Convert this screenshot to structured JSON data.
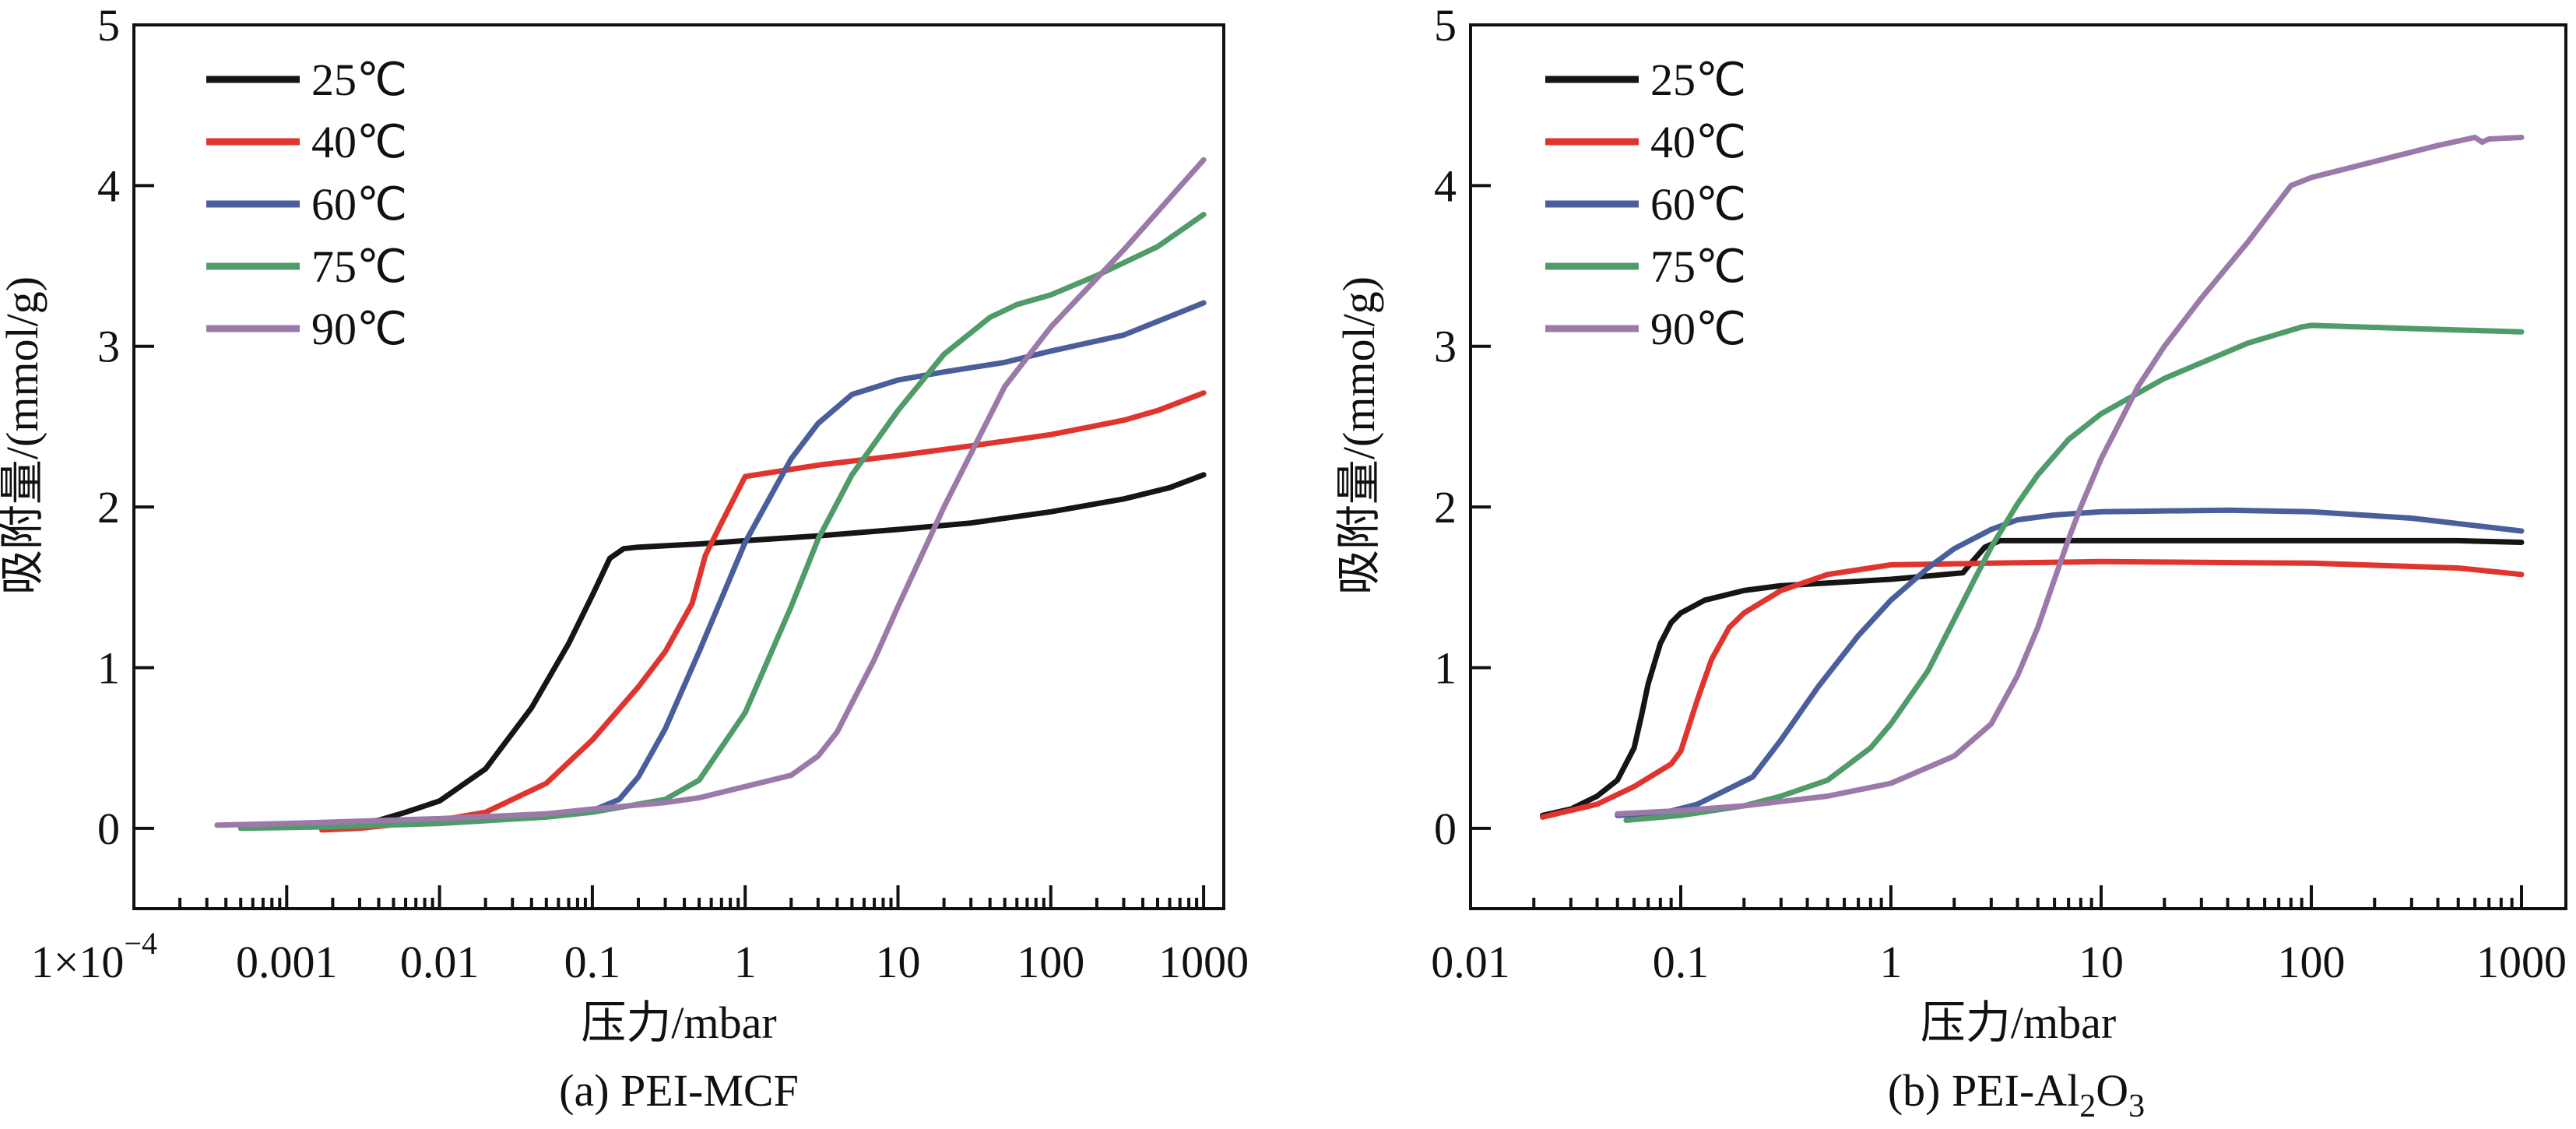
{
  "chart_data": [
    {
      "type": "line",
      "panel": "a",
      "caption": "(a) PEI-MCF",
      "xlabel": "压力/mbar",
      "ylabel": "吸附量/(mmol/g)",
      "xscale": "log",
      "xlim": [
        0.0001,
        1380
      ],
      "ylim": [
        -0.5,
        5
      ],
      "xticks": [
        {
          "value": 0.0001,
          "label": "1×10",
          "sup": "−4"
        },
        {
          "value": 0.001,
          "label": "0.001"
        },
        {
          "value": 0.01,
          "label": "0.01"
        },
        {
          "value": 0.1,
          "label": "0.1"
        },
        {
          "value": 1,
          "label": "1"
        },
        {
          "value": 10,
          "label": "10"
        },
        {
          "value": 100,
          "label": "100"
        },
        {
          "value": 1000,
          "label": "1000"
        }
      ],
      "yticks": [
        0,
        1,
        2,
        3,
        4,
        5
      ],
      "legend": "top-left",
      "grid": false,
      "series": [
        {
          "name": "25℃",
          "color": "#151515",
          "x": [
            0.0015,
            0.0025,
            0.004,
            0.006,
            0.01,
            0.02,
            0.04,
            0.07,
            0.1,
            0.13,
            0.16,
            0.2,
            0.5,
            1,
            3,
            10,
            30,
            100,
            300,
            600,
            1000
          ],
          "y": [
            0.03,
            0.03,
            0.05,
            0.1,
            0.17,
            0.37,
            0.75,
            1.15,
            1.45,
            1.68,
            1.74,
            1.75,
            1.77,
            1.79,
            1.82,
            1.86,
            1.9,
            1.97,
            2.05,
            2.12,
            2.2
          ]
        },
        {
          "name": "40℃",
          "color": "#e0352f",
          "x": [
            0.0017,
            0.003,
            0.006,
            0.01,
            0.02,
            0.05,
            0.1,
            0.2,
            0.3,
            0.45,
            0.55,
            0.7,
            1.0,
            3,
            10,
            30,
            100,
            300,
            500,
            1000
          ],
          "y": [
            -0.01,
            0.0,
            0.03,
            0.05,
            0.1,
            0.28,
            0.55,
            0.88,
            1.1,
            1.4,
            1.7,
            1.9,
            2.19,
            2.26,
            2.32,
            2.38,
            2.45,
            2.54,
            2.6,
            2.71
          ]
        },
        {
          "name": "60℃",
          "color": "#4a5e9c",
          "x": [
            0.0005,
            0.002,
            0.01,
            0.05,
            0.1,
            0.15,
            0.2,
            0.3,
            0.5,
            1,
            2,
            3,
            5,
            10,
            20,
            50,
            100,
            300,
            1000
          ],
          "y": [
            0.02,
            0.03,
            0.05,
            0.08,
            0.11,
            0.18,
            0.32,
            0.62,
            1.1,
            1.78,
            2.3,
            2.52,
            2.7,
            2.79,
            2.84,
            2.9,
            2.97,
            3.07,
            3.27
          ]
        },
        {
          "name": "75℃",
          "color": "#4f9b69",
          "x": [
            0.0005,
            0.002,
            0.01,
            0.05,
            0.1,
            0.3,
            0.5,
            1,
            2,
            3,
            5,
            10,
            20,
            40,
            60,
            100,
            200,
            500,
            1000
          ],
          "y": [
            0.0,
            0.01,
            0.03,
            0.07,
            0.1,
            0.18,
            0.3,
            0.72,
            1.38,
            1.8,
            2.2,
            2.6,
            2.95,
            3.18,
            3.26,
            3.32,
            3.44,
            3.62,
            3.82
          ]
        },
        {
          "name": "90℃",
          "color": "#9b79a9",
          "x": [
            0.00035,
            0.001,
            0.01,
            0.05,
            0.1,
            0.3,
            0.5,
            1,
            2,
            3,
            4,
            5,
            7,
            10,
            20,
            50,
            100,
            300,
            1000
          ],
          "y": [
            0.02,
            0.03,
            0.06,
            0.09,
            0.12,
            0.16,
            0.19,
            0.26,
            0.33,
            0.45,
            0.6,
            0.78,
            1.05,
            1.38,
            2.0,
            2.75,
            3.12,
            3.6,
            4.16
          ]
        }
      ]
    },
    {
      "type": "line",
      "panel": "b",
      "caption_parts": [
        "(b) PEI-Al",
        "2",
        "O",
        "3"
      ],
      "caption": "(b) PEI-Al2O3",
      "xlabel": "压力/mbar",
      "ylabel": "吸附量/(mmol/g)",
      "xscale": "log",
      "xlim": [
        0.01,
        1630
      ],
      "ylim": [
        -0.5,
        5
      ],
      "xticks": [
        {
          "value": 0.01,
          "label": "0.01"
        },
        {
          "value": 0.1,
          "label": "0.1"
        },
        {
          "value": 1,
          "label": "1"
        },
        {
          "value": 10,
          "label": "10"
        },
        {
          "value": 100,
          "label": "100"
        },
        {
          "value": 1000,
          "label": "1000"
        }
      ],
      "yticks": [
        0,
        1,
        2,
        3,
        4,
        5
      ],
      "legend": "top-left",
      "grid": false,
      "series": [
        {
          "name": "25℃",
          "color": "#151515",
          "x": [
            0.022,
            0.03,
            0.04,
            0.05,
            0.06,
            0.065,
            0.07,
            0.08,
            0.09,
            0.1,
            0.13,
            0.2,
            0.3,
            1,
            2.2,
            2.4,
            2.8,
            3.3,
            10,
            100,
            500,
            1000
          ],
          "y": [
            0.08,
            0.12,
            0.2,
            0.3,
            0.5,
            0.7,
            0.9,
            1.15,
            1.28,
            1.34,
            1.42,
            1.48,
            1.51,
            1.55,
            1.59,
            1.65,
            1.75,
            1.79,
            1.79,
            1.79,
            1.79,
            1.78
          ]
        },
        {
          "name": "40℃",
          "color": "#e0352f",
          "x": [
            0.022,
            0.04,
            0.06,
            0.09,
            0.1,
            0.12,
            0.14,
            0.17,
            0.2,
            0.3,
            0.5,
            1,
            3,
            10,
            100,
            500,
            1000
          ],
          "y": [
            0.07,
            0.15,
            0.26,
            0.4,
            0.48,
            0.8,
            1.05,
            1.25,
            1.34,
            1.48,
            1.58,
            1.64,
            1.65,
            1.66,
            1.65,
            1.62,
            1.58
          ]
        },
        {
          "name": "60℃",
          "color": "#4a5e9c",
          "x": [
            0.05,
            0.08,
            0.12,
            0.22,
            0.3,
            0.45,
            0.7,
            1,
            1.5,
            2,
            3,
            4,
            6,
            10,
            40,
            100,
            300,
            1000
          ],
          "y": [
            0.08,
            0.09,
            0.15,
            0.32,
            0.55,
            0.88,
            1.2,
            1.42,
            1.62,
            1.74,
            1.86,
            1.92,
            1.95,
            1.97,
            1.98,
            1.97,
            1.93,
            1.85
          ]
        },
        {
          "name": "75℃",
          "color": "#4f9b69",
          "x": [
            0.055,
            0.1,
            0.2,
            0.3,
            0.5,
            0.8,
            1,
            1.5,
            2,
            2.5,
            3,
            4,
            5,
            7,
            10,
            20,
            50,
            90,
            100,
            300,
            1000
          ],
          "y": [
            0.05,
            0.08,
            0.14,
            0.2,
            0.3,
            0.5,
            0.65,
            0.98,
            1.3,
            1.55,
            1.75,
            2.02,
            2.2,
            2.42,
            2.58,
            2.8,
            3.02,
            3.12,
            3.13,
            3.11,
            3.09
          ]
        },
        {
          "name": "90℃",
          "color": "#9b79a9",
          "x": [
            0.05,
            0.1,
            0.2,
            0.5,
            1,
            2,
            3,
            4,
            5,
            6,
            7,
            8,
            10,
            15,
            20,
            30,
            50,
            80,
            100,
            200,
            400,
            600,
            650,
            700,
            1000
          ],
          "y": [
            0.09,
            0.11,
            0.14,
            0.2,
            0.28,
            0.45,
            0.65,
            0.95,
            1.25,
            1.55,
            1.8,
            2.0,
            2.3,
            2.75,
            3.0,
            3.3,
            3.65,
            4.0,
            4.05,
            4.15,
            4.25,
            4.3,
            4.27,
            4.29,
            4.3
          ]
        }
      ]
    }
  ]
}
